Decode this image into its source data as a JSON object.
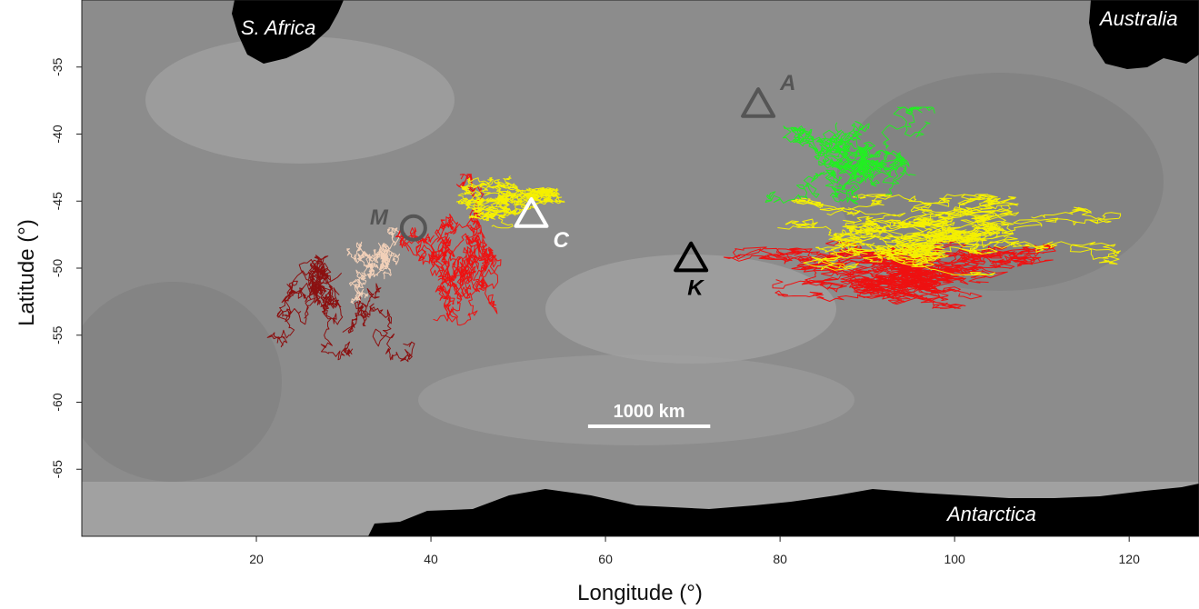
{
  "map": {
    "xlabel": "Longitude (°)",
    "ylabel": "Latitude (°)",
    "xlim": [
      0,
      128
    ],
    "ylim": [
      -70,
      -30
    ],
    "x_ticks": [
      20,
      40,
      60,
      80,
      100,
      120
    ],
    "y_ticks": [
      -35,
      -40,
      -45,
      -50,
      -55,
      -60,
      -65
    ],
    "basemap": "grayscale ocean bathymetry",
    "landmasses": {
      "south_africa": "S. Africa",
      "australia": "Australia",
      "antarctica": "Antarctica"
    },
    "scale_bar": {
      "label": "1000 km",
      "from_lon": 58,
      "to_lon": 72,
      "lat": -61.8
    },
    "sites": [
      {
        "code": "M",
        "marker": "circle",
        "lon": 38,
        "lat": -47,
        "color": "#555555",
        "label_color": "#555555"
      },
      {
        "code": "C",
        "marker": "triangle",
        "lon": 51.5,
        "lat": -46,
        "color": "#ffffff",
        "label_color": "#ffffff"
      },
      {
        "code": "K",
        "marker": "triangle",
        "lon": 69.8,
        "lat": -49.3,
        "color": "#000000",
        "label_color": "#000000"
      },
      {
        "code": "A",
        "marker": "triangle",
        "lon": 77.5,
        "lat": -37.8,
        "color": "#555555",
        "label_color": "#555555"
      }
    ],
    "track_colors": {
      "dark_red": "#8b1010",
      "pale": "#f2d0b8",
      "red": "#ee1111",
      "yellow": "#f5f000",
      "green": "#22ee22"
    },
    "track_groups": [
      {
        "color": "#8b1010",
        "count": 9,
        "center": [
          30,
          -52
        ],
        "spread": [
          9,
          5
        ]
      },
      {
        "color": "#f2d0b8",
        "count": 8,
        "center": [
          34,
          -50
        ],
        "spread": [
          5,
          3
        ]
      },
      {
        "color": "#ee1111",
        "count": 12,
        "center": [
          44,
          -49
        ],
        "spread": [
          9,
          6
        ]
      },
      {
        "color": "#f5f000",
        "count": 16,
        "center": [
          48,
          -45
        ],
        "spread": [
          9,
          2
        ]
      },
      {
        "color": "#ee1111",
        "count": 24,
        "center": [
          95,
          -50
        ],
        "spread": [
          25,
          3
        ]
      },
      {
        "color": "#f5f000",
        "count": 22,
        "center": [
          95,
          -47.5
        ],
        "spread": [
          24,
          3
        ]
      },
      {
        "color": "#22ee22",
        "count": 14,
        "center": [
          88,
          -42
        ],
        "spread": [
          12,
          4
        ]
      }
    ]
  }
}
